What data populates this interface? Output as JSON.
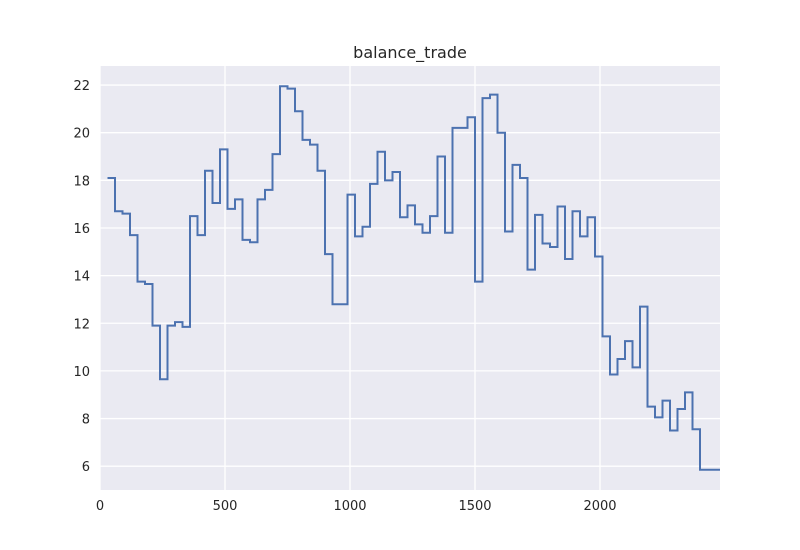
{
  "chart_data": {
    "type": "line",
    "drawstyle": "steps-post",
    "title": "balance_trade",
    "xlabel": "",
    "ylabel": "",
    "xlim": [
      0,
      2480
    ],
    "ylim": [
      5,
      22.8
    ],
    "xticks": [
      0,
      500,
      1000,
      1500,
      2000
    ],
    "yticks": [
      6,
      8,
      10,
      12,
      14,
      16,
      18,
      20,
      22
    ],
    "grid": true,
    "background": "#eaeaf2",
    "grid_color": "#ffffff",
    "series": [
      {
        "color": "#4c72b0",
        "x": [
          30,
          60,
          90,
          120,
          150,
          180,
          210,
          240,
          270,
          300,
          330,
          360,
          390,
          420,
          450,
          480,
          510,
          540,
          570,
          600,
          630,
          660,
          690,
          720,
          750,
          780,
          810,
          840,
          870,
          900,
          930,
          960,
          990,
          1020,
          1050,
          1080,
          1110,
          1140,
          1170,
          1200,
          1230,
          1260,
          1290,
          1320,
          1350,
          1380,
          1410,
          1440,
          1470,
          1500,
          1530,
          1560,
          1590,
          1620,
          1650,
          1680,
          1710,
          1740,
          1770,
          1800,
          1830,
          1860,
          1890,
          1920,
          1950,
          1980,
          2010,
          2040,
          2070,
          2100,
          2130,
          2160,
          2190,
          2220,
          2250,
          2280,
          2310,
          2340,
          2370,
          2400,
          2430,
          2480
        ],
        "y": [
          18.1,
          16.7,
          16.6,
          15.7,
          13.75,
          13.65,
          11.9,
          9.65,
          11.9,
          12.05,
          11.85,
          16.5,
          15.7,
          18.4,
          17.05,
          19.3,
          16.8,
          17.2,
          15.5,
          15.4,
          17.2,
          17.6,
          19.1,
          21.95,
          21.85,
          20.9,
          19.7,
          19.5,
          18.4,
          14.9,
          12.8,
          12.8,
          17.4,
          15.65,
          16.05,
          17.85,
          19.2,
          18.0,
          18.35,
          16.45,
          16.95,
          16.15,
          15.8,
          16.5,
          19.0,
          15.8,
          20.2,
          20.2,
          20.65,
          13.75,
          21.45,
          21.6,
          20.0,
          15.85,
          18.65,
          18.1,
          14.25,
          16.55,
          15.35,
          15.2,
          16.9,
          14.7,
          16.7,
          15.65,
          16.45,
          14.8,
          11.45,
          9.85,
          10.5,
          11.25,
          10.15,
          12.7,
          8.5,
          8.05,
          8.75,
          7.5,
          8.4,
          9.1,
          7.55,
          5.85,
          5.85,
          5.85
        ]
      }
    ]
  }
}
